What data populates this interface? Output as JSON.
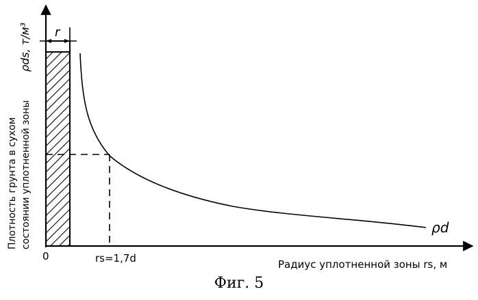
{
  "figure": {
    "ylabel_line1": "Плотность грунта в сухом",
    "ylabel_line2": "состоянии уплотненной зоны",
    "ylabel_symbol": "ρds, т/м³",
    "xlabel": "Радиус уплотненной зоны rs, м",
    "origin_label": "0",
    "r_label": "r",
    "rs_marker_label": "rs=1,7d",
    "curve_label": "ρd",
    "caption": "Фиг. 5"
  },
  "colors": {
    "ink": "#000000",
    "background": "#ffffff"
  }
}
